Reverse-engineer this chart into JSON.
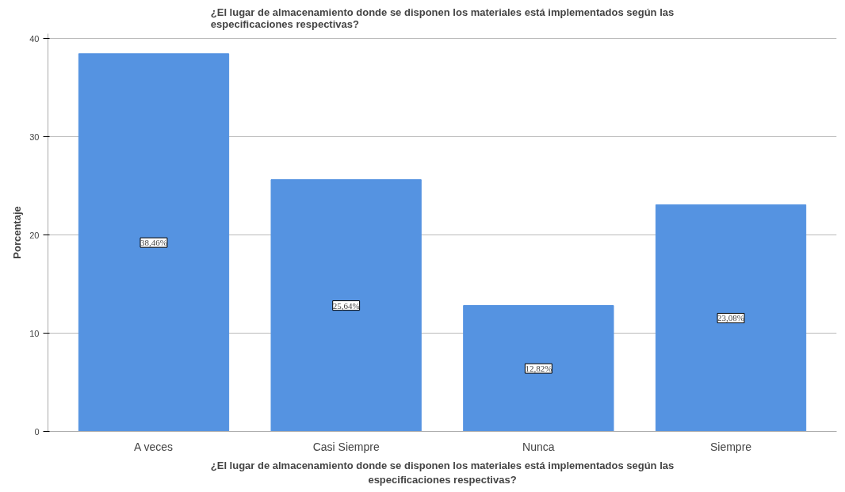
{
  "chart_data": {
    "type": "bar",
    "title": "¿El lugar de almacenamiento donde se disponen los materiales está implementados según las especificaciones respectivas?",
    "xlabel": "¿El lugar de almacenamiento donde se disponen los materiales está implementados según las especificaciones respectivas?",
    "ylabel": "Porcentaje",
    "categories": [
      "A veces",
      "Casi Siempre",
      "Nunca",
      "Siempre"
    ],
    "values": [
      38.46,
      25.64,
      12.82,
      23.08
    ],
    "value_labels": [
      "38,46%",
      "25,64%",
      "12,82%",
      "23,08%"
    ],
    "color": "#5593e1",
    "ylim": [
      0,
      40.5
    ],
    "yticks": [
      0,
      10,
      20,
      30,
      40
    ],
    "grid": "y"
  }
}
